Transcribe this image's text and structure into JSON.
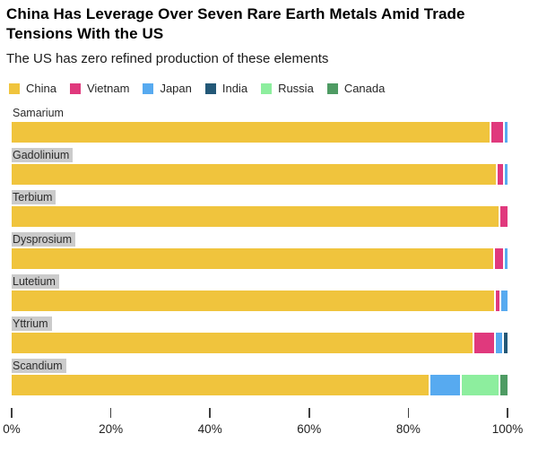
{
  "title": "China Has Leverage Over Seven Rare Earth Metals Amid Trade Tensions With the US",
  "subtitle": "The US has zero refined production of these elements",
  "legend": {
    "items": [
      {
        "name": "China",
        "label": "China",
        "color": "#F0C43D"
      },
      {
        "name": "Vietnam",
        "label": "Vietnam",
        "color": "#E0397D"
      },
      {
        "name": "Japan",
        "label": "Japan",
        "color": "#57AAF0"
      },
      {
        "name": "India",
        "label": "India",
        "color": "#235877"
      },
      {
        "name": "Russia",
        "label": "Russia",
        "color": "#8DEE9E"
      },
      {
        "name": "Canada",
        "label": "Canada",
        "color": "#4E9B63"
      }
    ]
  },
  "chart_data": {
    "type": "bar",
    "orientation": "horizontal",
    "stacked": true,
    "unit": "percent share of refined production",
    "grid": false,
    "legend_position": "top",
    "xlim": [
      0,
      100
    ],
    "x_ticks": [
      {
        "value": 0,
        "label": "0%"
      },
      {
        "value": 20,
        "label": "20%"
      },
      {
        "value": 40,
        "label": "40%"
      },
      {
        "value": 60,
        "label": "60%"
      },
      {
        "value": 80,
        "label": "80%"
      },
      {
        "value": 100,
        "label": "100%"
      }
    ],
    "categories": [
      "Samarium",
      "Gadolinium",
      "Terbium",
      "Dysprosium",
      "Lutetium",
      "Yttrium",
      "Scandium"
    ],
    "category_label_highlighted": [
      false,
      true,
      true,
      true,
      true,
      true,
      true
    ],
    "series": [
      {
        "name": "China",
        "values": [
          97.0,
          98.3,
          98.6,
          97.8,
          98.0,
          94.0,
          85.0
        ]
      },
      {
        "name": "Vietnam",
        "values": [
          2.5,
          1.2,
          1.4,
          1.6,
          0.8,
          4.0,
          0.0
        ]
      },
      {
        "name": "Japan",
        "values": [
          0.5,
          0.5,
          0.0,
          0.6,
          1.2,
          1.2,
          6.0
        ]
      },
      {
        "name": "India",
        "values": [
          0.0,
          0.0,
          0.0,
          0.0,
          0.0,
          0.8,
          0.0
        ]
      },
      {
        "name": "Russia",
        "values": [
          0.0,
          0.0,
          0.0,
          0.0,
          0.0,
          0.0,
          7.5
        ]
      },
      {
        "name": "Canada",
        "values": [
          0.0,
          0.0,
          0.0,
          0.0,
          0.0,
          0.0,
          1.5
        ]
      }
    ]
  }
}
